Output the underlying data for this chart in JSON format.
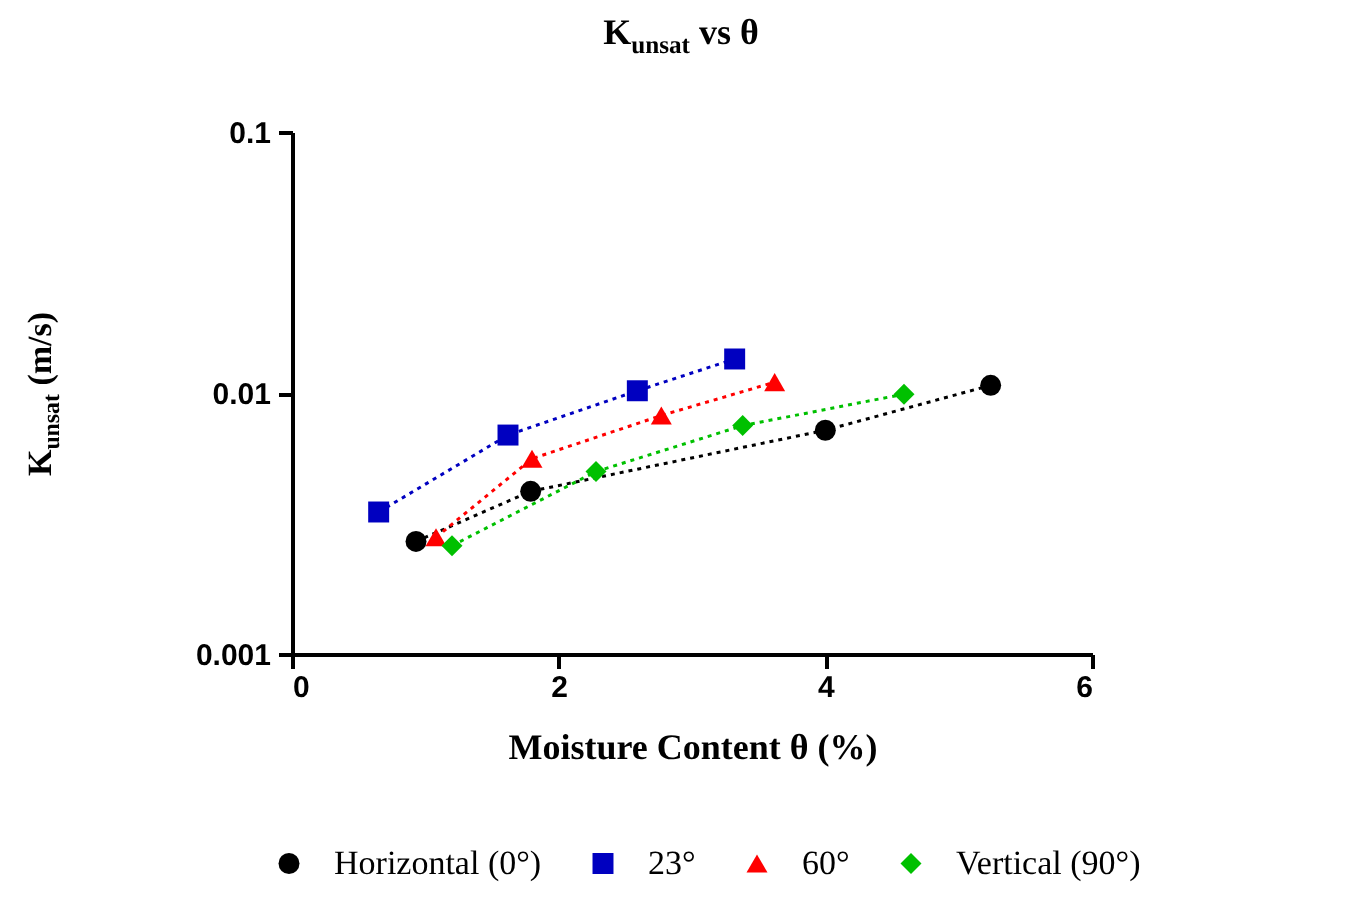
{
  "chart_data": {
    "type": "line",
    "title": "K$_{unsat}$ vs θ",
    "xlabel": "Moisture Content θ (%)",
    "ylabel": "K$_{unsat}$ (m/s)",
    "series": [
      {
        "name": "Horizontal (0°)",
        "color": "#000000",
        "marker": "circle",
        "x": [
          0.93,
          1.79,
          4.0,
          5.24
        ],
        "values": [
          0.0027,
          0.0042,
          0.0072,
          0.0107
        ]
      },
      {
        "name": "23°",
        "color": "#0000c0",
        "marker": "square",
        "x": [
          0.65,
          1.62,
          2.59,
          3.32
        ],
        "values": [
          0.0035,
          0.0069,
          0.0102,
          0.0135
        ]
      },
      {
        "name": "60°",
        "color": "#ff0000",
        "marker": "triangle",
        "x": [
          1.08,
          1.8,
          2.77,
          3.62
        ],
        "values": [
          0.0028,
          0.0056,
          0.0082,
          0.011
        ]
      },
      {
        "name": "Vertical (90°)",
        "color": "#00c000",
        "marker": "diamond",
        "x": [
          1.2,
          2.28,
          3.38,
          4.59
        ],
        "values": [
          0.0026,
          0.005,
          0.0075,
          0.0099
        ]
      }
    ],
    "xlim": [
      0,
      6
    ],
    "xticks": [
      0,
      2,
      4,
      6
    ],
    "ylim": [
      0.001,
      0.1
    ],
    "yticks": [
      0.001,
      0.01,
      0.1
    ],
    "log": true,
    "grid": false,
    "legend": "bottom",
    "line_style": "dotted"
  }
}
